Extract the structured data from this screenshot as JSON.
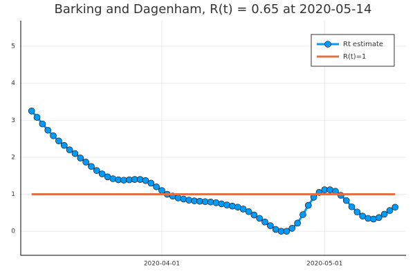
{
  "chart_data": {
    "type": "line",
    "title": "Barking and Dagenham, R(t) = 0.65 at 2020-05-14",
    "x": [
      "2020-03-08",
      "2020-03-09",
      "2020-03-10",
      "2020-03-11",
      "2020-03-12",
      "2020-03-13",
      "2020-03-14",
      "2020-03-15",
      "2020-03-16",
      "2020-03-17",
      "2020-03-18",
      "2020-03-19",
      "2020-03-20",
      "2020-03-21",
      "2020-03-22",
      "2020-03-23",
      "2020-03-24",
      "2020-03-25",
      "2020-03-26",
      "2020-03-27",
      "2020-03-28",
      "2020-03-29",
      "2020-03-30",
      "2020-03-31",
      "2020-04-01",
      "2020-04-02",
      "2020-04-03",
      "2020-04-04",
      "2020-04-05",
      "2020-04-06",
      "2020-04-07",
      "2020-04-08",
      "2020-04-09",
      "2020-04-10",
      "2020-04-11",
      "2020-04-12",
      "2020-04-13",
      "2020-04-14",
      "2020-04-15",
      "2020-04-16",
      "2020-04-17",
      "2020-04-18",
      "2020-04-19",
      "2020-04-20",
      "2020-04-21",
      "2020-04-22",
      "2020-04-23",
      "2020-04-24",
      "2020-04-25",
      "2020-04-26",
      "2020-04-27",
      "2020-04-28",
      "2020-04-29",
      "2020-04-30",
      "2020-05-01",
      "2020-05-02",
      "2020-05-03",
      "2020-05-04",
      "2020-05-05",
      "2020-05-06",
      "2020-05-07",
      "2020-05-08",
      "2020-05-09",
      "2020-05-10",
      "2020-05-11",
      "2020-05-12",
      "2020-05-13",
      "2020-05-14"
    ],
    "series": [
      {
        "name": "Rt estimate",
        "color": "#009af9",
        "marker": true,
        "values": [
          3.25,
          3.08,
          2.9,
          2.73,
          2.58,
          2.44,
          2.32,
          2.2,
          2.1,
          1.98,
          1.87,
          1.75,
          1.64,
          1.55,
          1.47,
          1.42,
          1.39,
          1.38,
          1.39,
          1.4,
          1.4,
          1.37,
          1.3,
          1.2,
          1.1,
          1.0,
          0.95,
          0.9,
          0.87,
          0.84,
          0.82,
          0.81,
          0.8,
          0.79,
          0.77,
          0.74,
          0.71,
          0.68,
          0.65,
          0.6,
          0.53,
          0.44,
          0.35,
          0.25,
          0.15,
          0.05,
          0.0,
          0.0,
          0.08,
          0.22,
          0.45,
          0.7,
          0.92,
          1.05,
          1.12,
          1.12,
          1.08,
          0.97,
          0.83,
          0.66,
          0.52,
          0.41,
          0.35,
          0.33,
          0.37,
          0.46,
          0.56,
          0.65
        ]
      },
      {
        "name": "R(t)=1",
        "color": "#e26f46",
        "marker": false,
        "x": [
          "2020-03-08",
          "2020-05-14"
        ],
        "values": [
          1,
          1
        ]
      }
    ],
    "xlim": [
      "2020-03-06",
      "2020-05-16"
    ],
    "ylim": [
      -0.65,
      5.69
    ],
    "xticks": [
      "2020-04-01",
      "2020-05-01"
    ],
    "yticks": [
      0,
      1,
      2,
      3,
      4,
      5
    ],
    "grid": true,
    "legend": "top-right"
  }
}
